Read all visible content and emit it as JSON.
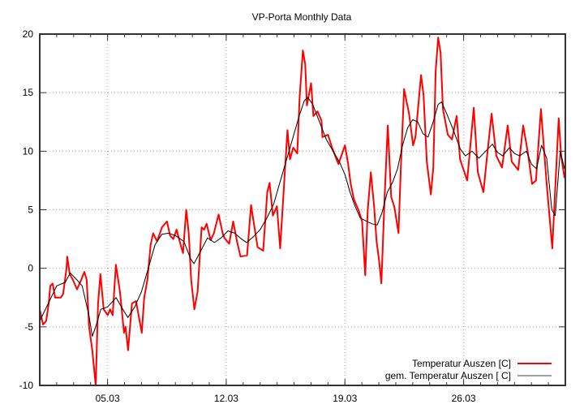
{
  "chart_data": {
    "type": "line",
    "title": "VP-Porta Monthly Data",
    "xlabel": "",
    "ylabel": "",
    "xlim": [
      1,
      32
    ],
    "ylim": [
      -10,
      20
    ],
    "grid": true,
    "legend_position": "bottom-right",
    "x_unit": "day of March",
    "yticks": [
      -10,
      -5,
      0,
      5,
      10,
      15,
      20
    ],
    "xticks": [
      {
        "value": 5,
        "label": "05.03"
      },
      {
        "value": 12,
        "label": "12.03"
      },
      {
        "value": 19,
        "label": "19.03"
      },
      {
        "value": 26,
        "label": "26.03"
      }
    ],
    "series": [
      {
        "name": "Temperatur Auszen [C]",
        "color": "#ff0000",
        "x": [
          1.0,
          1.19,
          1.38,
          1.53,
          1.62,
          1.76,
          1.91,
          2.24,
          2.38,
          2.58,
          2.62,
          2.77,
          2.96,
          3.2,
          3.44,
          3.63,
          3.77,
          3.91,
          4.1,
          4.3,
          4.44,
          4.58,
          4.77,
          5.01,
          5.15,
          5.3,
          5.49,
          5.73,
          5.97,
          6.06,
          6.21,
          6.44,
          6.68,
          7.02,
          7.16,
          7.35,
          7.54,
          7.69,
          7.92,
          8.21,
          8.5,
          8.69,
          8.88,
          9.07,
          9.31,
          9.45,
          9.64,
          9.79,
          9.93,
          10.12,
          10.31,
          10.55,
          10.69,
          10.84,
          11.08,
          11.27,
          11.55,
          11.79,
          11.89,
          12.17,
          12.41,
          12.65,
          12.84,
          13.23,
          13.46,
          13.61,
          13.85,
          14.18,
          14.42,
          14.56,
          14.75,
          14.99,
          15.18,
          15.47,
          15.61,
          15.76,
          15.95,
          16.19,
          16.33,
          16.52,
          16.66,
          16.76,
          17.0,
          17.14,
          17.38,
          17.62,
          17.67,
          18.0,
          18.24,
          18.48,
          18.62,
          18.81,
          19.0,
          19.19,
          19.34,
          19.53,
          19.67,
          19.82,
          20.01,
          20.2,
          20.34,
          20.53,
          20.72,
          20.87,
          21.01,
          21.15,
          21.34,
          21.53,
          21.73,
          21.92,
          22.16,
          22.3,
          22.49,
          22.78,
          23.02,
          23.16,
          23.49,
          23.64,
          23.83,
          24.07,
          24.21,
          24.35,
          24.5,
          24.64,
          24.78,
          25.07,
          25.31,
          25.59,
          25.79,
          26.21,
          26.6,
          26.84,
          27.17,
          27.41,
          27.65,
          27.93,
          28.27,
          28.6,
          28.84,
          29.22,
          29.51,
          29.8,
          30.04,
          30.27,
          30.56,
          30.9,
          31.23,
          31.61,
          31.75,
          31.95
        ],
        "y": [
          -3.5,
          -4.8,
          -4.5,
          -3.0,
          -1.5,
          -1.3,
          -2.5,
          -2.5,
          -2.2,
          0.0,
          1.0,
          -0.5,
          -1.0,
          -1.8,
          -1.0,
          -0.3,
          -1.0,
          -5.0,
          -7.0,
          -10.0,
          -3.0,
          -0.5,
          -3.5,
          -4.0,
          -3.5,
          -4.0,
          0.3,
          -2.0,
          -5.5,
          -5.0,
          -7.0,
          -3.0,
          -2.8,
          -5.5,
          -2.5,
          -1.0,
          2.0,
          3.0,
          2.3,
          3.5,
          4.0,
          2.8,
          2.5,
          3.3,
          2.0,
          1.3,
          5.0,
          3.0,
          -1.0,
          -3.5,
          -2.0,
          3.5,
          3.3,
          3.8,
          2.4,
          3.0,
          4.6,
          3.0,
          2.6,
          2.1,
          4.0,
          2.2,
          1.0,
          1.1,
          5.4,
          4.0,
          1.8,
          1.5,
          6.5,
          7.3,
          4.5,
          5.3,
          1.7,
          8.6,
          11.8,
          9.3,
          10.3,
          9.8,
          14.6,
          18.6,
          17.4,
          13.9,
          15.8,
          13.0,
          13.4,
          12.6,
          11.2,
          11.4,
          10.3,
          9.4,
          8.9,
          9.7,
          10.5,
          8.9,
          7.2,
          5.9,
          5.4,
          4.9,
          4.0,
          -0.6,
          4.9,
          8.2,
          5.3,
          2.3,
          0.7,
          -1.3,
          6.1,
          12.2,
          6.1,
          5.2,
          3.0,
          8.6,
          15.3,
          13.2,
          10.5,
          11.2,
          16.5,
          14.8,
          9.1,
          6.3,
          8.6,
          16.8,
          19.7,
          18.4,
          13.6,
          11.4,
          11.0,
          13.0,
          9.3,
          7.5,
          13.7,
          8.2,
          6.5,
          10.0,
          13.2,
          9.6,
          8.6,
          12.2,
          9.1,
          8.4,
          12.2,
          9.8,
          7.2,
          7.5,
          13.6,
          7.2,
          1.7,
          12.8,
          9.6,
          7.7
        ]
      },
      {
        "name": "gem. Temperatur Auszen [ C]",
        "color": "#000000",
        "x": [
          1.0,
          1.5,
          2.0,
          2.5,
          2.8,
          3.2,
          3.5,
          3.9,
          4.1,
          4.3,
          4.6,
          5.0,
          5.5,
          5.9,
          6.2,
          6.6,
          7.0,
          7.4,
          7.8,
          8.2,
          8.6,
          9.0,
          9.5,
          9.9,
          10.1,
          10.5,
          10.9,
          11.3,
          11.7,
          12.1,
          12.5,
          12.9,
          13.2,
          13.6,
          14.0,
          14.4,
          14.8,
          15.1,
          15.5,
          15.9,
          16.3,
          16.6,
          16.8,
          17.1,
          17.5,
          17.9,
          18.3,
          18.7,
          19.0,
          19.3,
          19.6,
          19.9,
          20.3,
          20.6,
          20.9,
          21.2,
          21.5,
          21.8,
          22.1,
          22.4,
          22.7,
          23.0,
          23.3,
          23.6,
          23.9,
          24.2,
          24.5,
          24.7,
          25.0,
          25.4,
          25.8,
          26.1,
          26.5,
          26.9,
          27.3,
          27.7,
          28.0,
          28.3,
          28.7,
          29.0,
          29.3,
          29.7,
          30.0,
          30.3,
          30.6,
          30.9,
          31.2,
          31.4,
          31.7,
          31.95
        ],
        "y": [
          -4.5,
          -3.0,
          -1.5,
          -1.2,
          -0.4,
          -1.0,
          -1.5,
          -4.0,
          -5.8,
          -5.0,
          -3.5,
          -3.3,
          -2.5,
          -3.5,
          -4.2,
          -3.3,
          -2.0,
          0.0,
          2.0,
          2.9,
          3.0,
          2.8,
          2.3,
          0.8,
          0.4,
          1.5,
          2.6,
          2.2,
          2.6,
          3.2,
          3.0,
          2.5,
          2.2,
          2.7,
          3.3,
          4.3,
          5.5,
          7.0,
          9.0,
          11.0,
          13.0,
          14.3,
          14.6,
          14.0,
          12.5,
          11.0,
          10.0,
          9.0,
          8.0,
          6.5,
          5.3,
          4.3,
          4.0,
          3.8,
          3.7,
          4.8,
          6.5,
          7.3,
          8.5,
          10.5,
          12.0,
          12.7,
          12.5,
          11.5,
          11.2,
          12.5,
          14.0,
          14.2,
          13.2,
          11.8,
          10.2,
          9.6,
          10.0,
          9.4,
          10.0,
          10.6,
          9.9,
          9.6,
          10.3,
          9.8,
          9.6,
          10.0,
          8.9,
          8.5,
          10.5,
          9.4,
          5.0,
          4.5,
          10.0,
          8.5
        ]
      }
    ]
  }
}
